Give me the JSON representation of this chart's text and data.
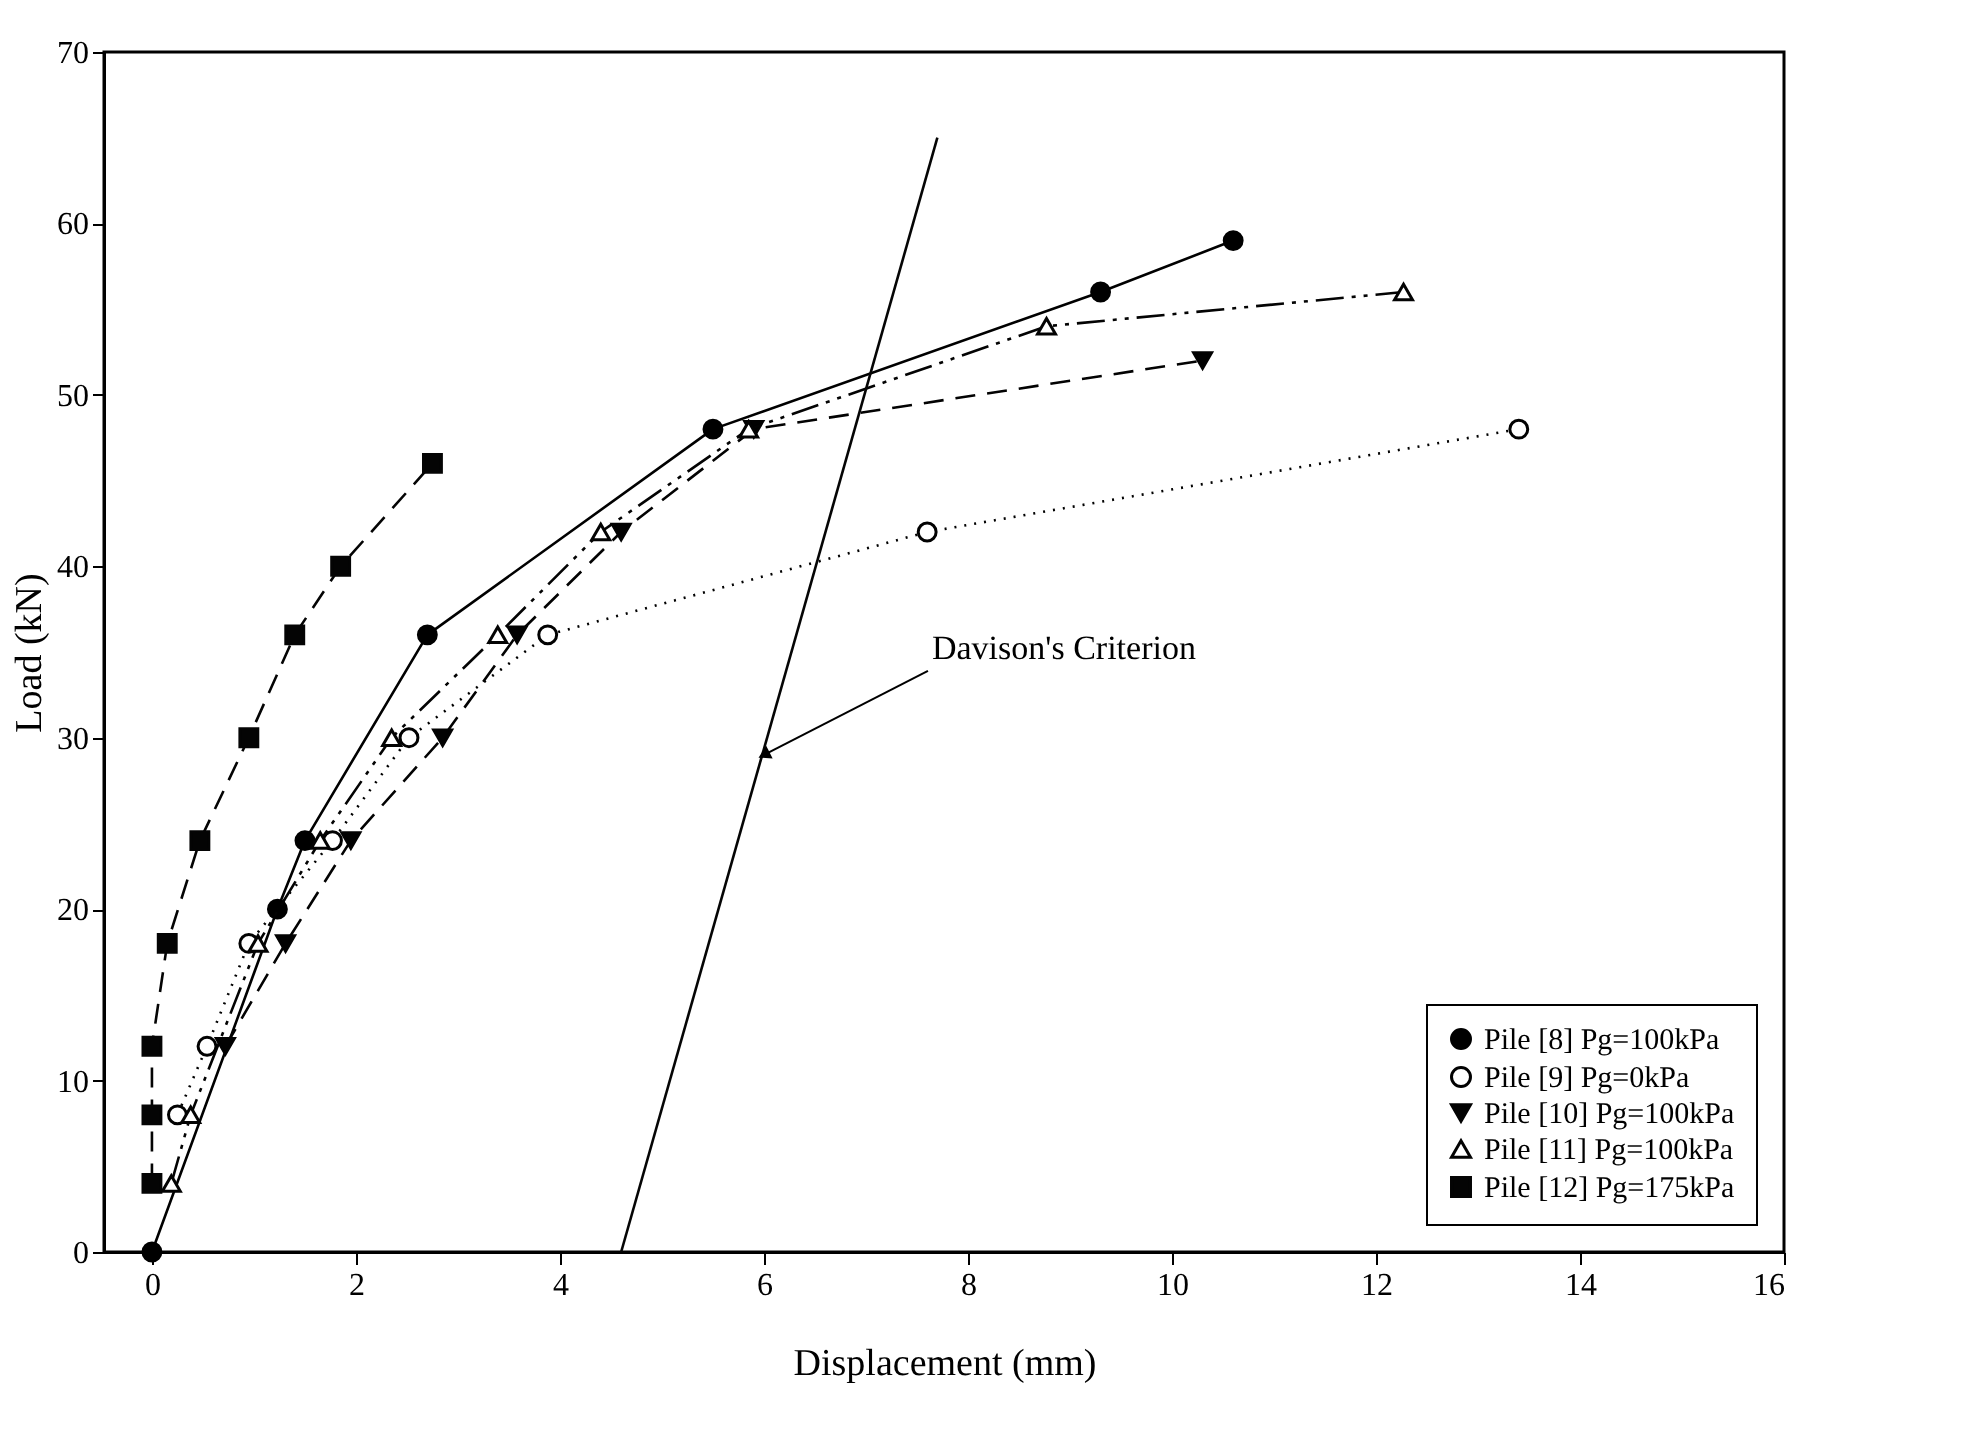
{
  "chart_data": {
    "type": "line",
    "xlabel": "Displacement (mm)",
    "ylabel": "Load (kN)",
    "xlim": [
      -0.47,
      16
    ],
    "xticks": [
      0,
      2,
      4,
      6,
      8,
      10,
      12,
      14,
      16
    ],
    "ylim": [
      0,
      70
    ],
    "yticks": [
      0,
      10,
      20,
      30,
      40,
      50,
      60,
      70
    ],
    "grid": false,
    "legend": "bottom right",
    "series": [
      {
        "name": "Pile [8] Pg=100kPa",
        "color": "#000000",
        "marker": "circle",
        "line_style": "solid",
        "x": [
          0,
          1.23,
          1.5,
          2.7,
          5.5,
          9.3,
          10.6
        ],
        "values": [
          0,
          20,
          24,
          36,
          48,
          56,
          59
        ]
      },
      {
        "name": "Pile [9] Pg=0kPa",
        "color": "#010101",
        "marker": "circle-open",
        "line_style": "dotted",
        "x": [
          0.25,
          0.54,
          0.95,
          1.77,
          2.52,
          3.88,
          7.6,
          13.4
        ],
        "values": [
          8,
          12,
          18,
          24,
          30,
          36,
          42,
          48
        ]
      },
      {
        "name": "Pile [10] Pg=100kPa",
        "color": "#020202",
        "marker": "triangle-down",
        "line_style": "dashed",
        "x": [
          0.72,
          1.31,
          1.95,
          2.85,
          3.58,
          4.6,
          5.9,
          10.3
        ],
        "values": [
          12,
          18,
          24,
          30,
          36,
          42,
          48,
          52
        ]
      },
      {
        "name": "Pile [11] Pg=100kPa",
        "color": "#030303",
        "marker": "triangle-open",
        "line_style": "dashdot",
        "x": [
          0.19,
          0.38,
          1.04,
          1.65,
          2.35,
          3.39,
          4.4,
          5.85,
          8.77,
          12.27
        ],
        "values": [
          4,
          8,
          18,
          24,
          30,
          36,
          42,
          48,
          54,
          56
        ]
      },
      {
        "name": "Pile [12] Pg=175kPa",
        "color": "#040404",
        "marker": "square",
        "line_style": "dashed",
        "x": [
          0,
          0,
          0,
          0.15,
          0.47,
          0.95,
          1.4,
          1.85,
          2.75
        ],
        "values": [
          4,
          8,
          12,
          18,
          24,
          30,
          36,
          40,
          46
        ]
      },
      {
        "type": "line",
        "color": "#050505",
        "marker": "none",
        "line_style": "solid",
        "x": [
          4.6,
          7.7
        ],
        "values": [
          0,
          65
        ]
      }
    ],
    "annotations": [
      {
        "text": "Davison's Criterion",
        "x": 6.0,
        "y": 29
      }
    ]
  }
}
